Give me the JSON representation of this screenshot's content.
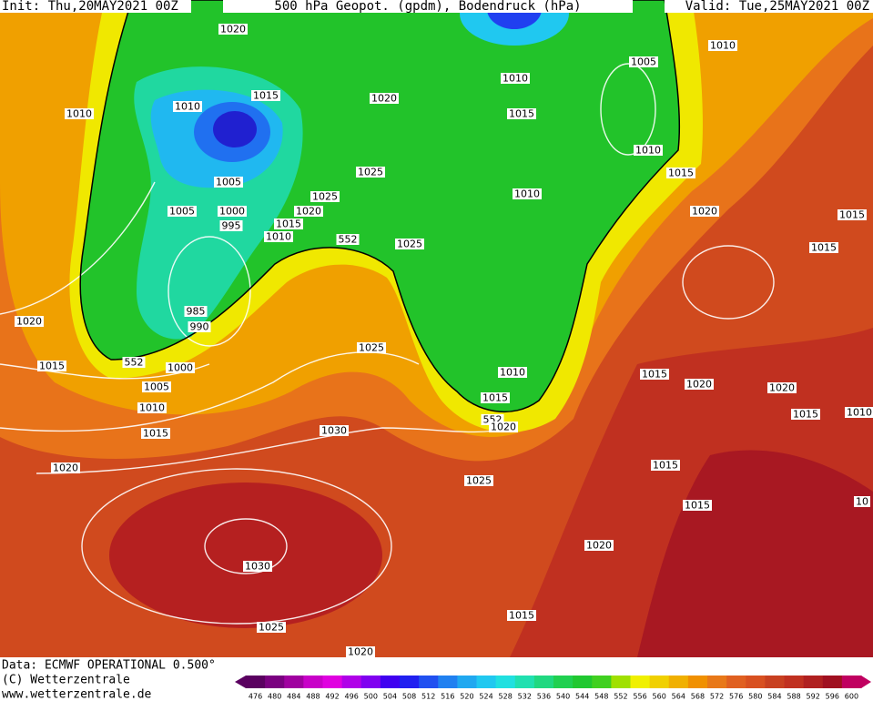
{
  "header": {
    "init": "Init: Thu,20MAY2021 00Z",
    "title": "500 hPa Geopot. (gpdm), Bodendruck (hPa)",
    "valid": "Valid: Tue,25MAY2021 00Z"
  },
  "footer": {
    "source": "Data: ECMWF OPERATIONAL 0.500°",
    "copyright": "(C) Wetterzentrale",
    "url": "www.wetterzentrale.de"
  },
  "isobar_labels": [
    "1020",
    "1010",
    "1005",
    "1010",
    "1015",
    "1010",
    "1020",
    "1015",
    "1010",
    "1010",
    "1015",
    "1025",
    "1005",
    "1025",
    "1010",
    "1020",
    "1005",
    "1000",
    "1020",
    "1015",
    "995",
    "1015",
    "1010",
    "552",
    "1025",
    "1015",
    "985",
    "1020",
    "990",
    "1025",
    "552",
    "1015",
    "1000",
    "1010",
    "1015",
    "1005",
    "1020",
    "1020",
    "1015",
    "1010",
    "1015",
    "1010",
    "552",
    "1020",
    "1015",
    "1030",
    "1015",
    "1020",
    "1025",
    "1015",
    "10",
    "1020",
    "1030",
    "1015",
    "1025",
    "1020"
  ],
  "legend": {
    "values": [
      476,
      480,
      484,
      488,
      492,
      496,
      500,
      504,
      508,
      512,
      516,
      520,
      524,
      528,
      532,
      536,
      540,
      544,
      548,
      552,
      556,
      560,
      564,
      568,
      572,
      576,
      580,
      584,
      588,
      592,
      596,
      600
    ],
    "colors": [
      "#5a0060",
      "#7a0080",
      "#a000a0",
      "#c800c8",
      "#e000e0",
      "#b000e8",
      "#8000f0",
      "#4000f0",
      "#2020f0",
      "#2050f0",
      "#2080f0",
      "#20a8f0",
      "#20c8f0",
      "#20e0e0",
      "#20e0b0",
      "#20d880",
      "#20d050",
      "#20c830",
      "#40d020",
      "#a0e000",
      "#f0f000",
      "#f0d000",
      "#f0b000",
      "#f09000",
      "#e87818",
      "#e06020",
      "#d85020",
      "#c84020",
      "#c03020",
      "#b02020",
      "#a01020",
      "#c00060"
    ]
  }
}
